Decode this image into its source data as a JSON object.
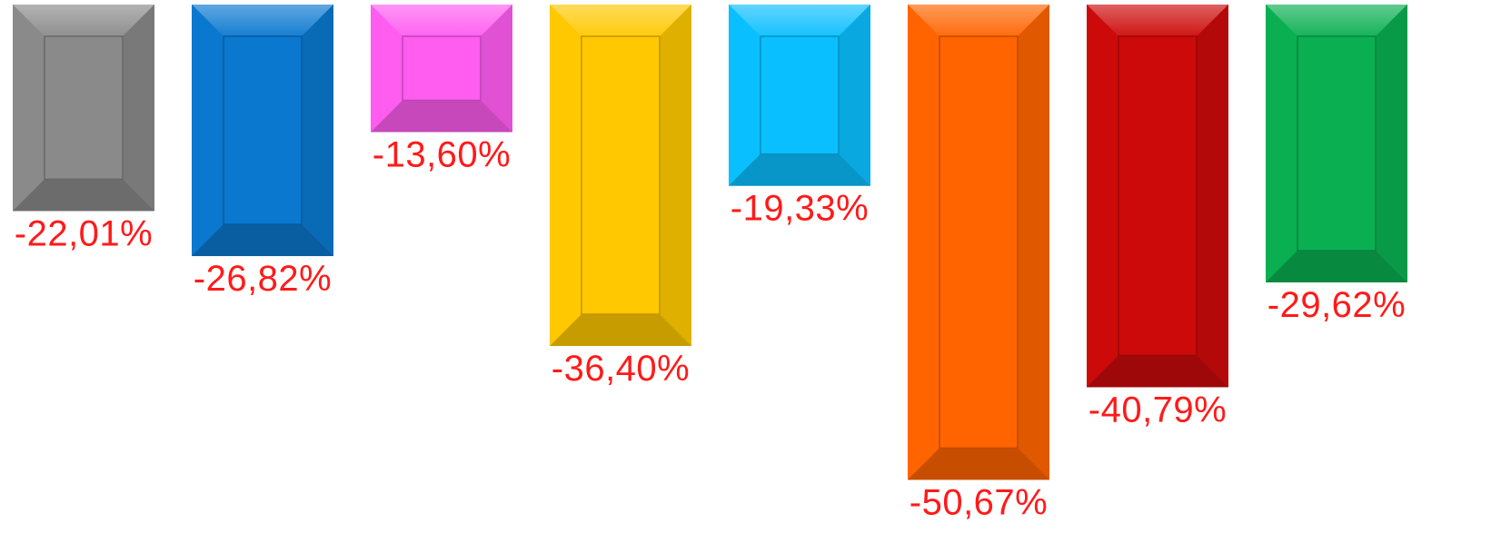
{
  "chart_data": {
    "type": "bar",
    "orientation": "vertical-negative",
    "values": [
      -22.01,
      -26.82,
      -13.6,
      -36.4,
      -19.33,
      -50.67,
      -40.79,
      -29.62
    ],
    "labels": [
      "-22,01%",
      "-26,82%",
      "-13,60%",
      "-36,40%",
      "-19,33%",
      "-50,67%",
      "-40,79%",
      "-29,62%"
    ],
    "colors": [
      "#8a8a8a",
      "#0a78cf",
      "#ff5cf0",
      "#ffc800",
      "#0abfff",
      "#ff6400",
      "#cc0a0a",
      "#0aaf52"
    ],
    "label_color": "#ff1a1a",
    "ylim": [
      -52,
      0
    ],
    "grid": false,
    "legend": "none"
  }
}
